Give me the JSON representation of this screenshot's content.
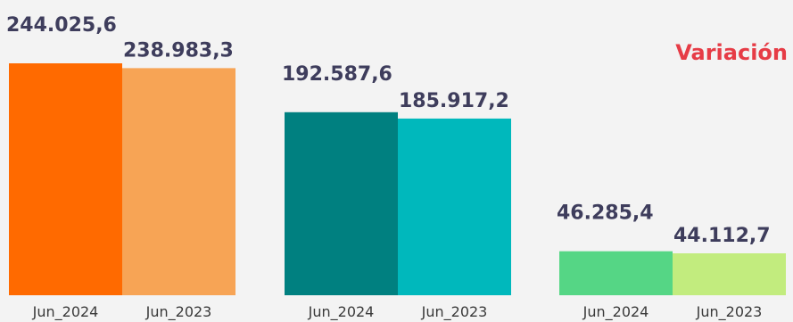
{
  "variation_label": "Variación",
  "colors": {
    "background": "#f3f3f3",
    "value_text": "#3e3d5c",
    "tick_text": "#3a3a3a",
    "variation_text": "#e63c46"
  },
  "chart_data": {
    "type": "bar",
    "grid": false,
    "value_format": "thousands dot separator, one decimal with comma",
    "groups": [
      {
        "categories": [
          "Jun_2024",
          "Jun_2023"
        ],
        "values": [
          244025.6,
          238983.3
        ],
        "labels": [
          "244.025,6",
          "238.983,3"
        ],
        "colors": [
          "#ff6a00",
          "#f7a455"
        ]
      },
      {
        "categories": [
          "Jun_2024",
          "Jun_2023"
        ],
        "values": [
          192587.6,
          185917.2
        ],
        "labels": [
          "192.587,6",
          "185.917,2"
        ],
        "colors": [
          "#008080",
          "#00b8bc"
        ]
      },
      {
        "categories": [
          "Jun_2024",
          "Jun_2023"
        ],
        "values": [
          46285.4,
          44112.7
        ],
        "labels": [
          "46.285,4",
          "44.112,7"
        ],
        "colors": [
          "#55d685",
          "#c2ec7e"
        ]
      }
    ]
  }
}
